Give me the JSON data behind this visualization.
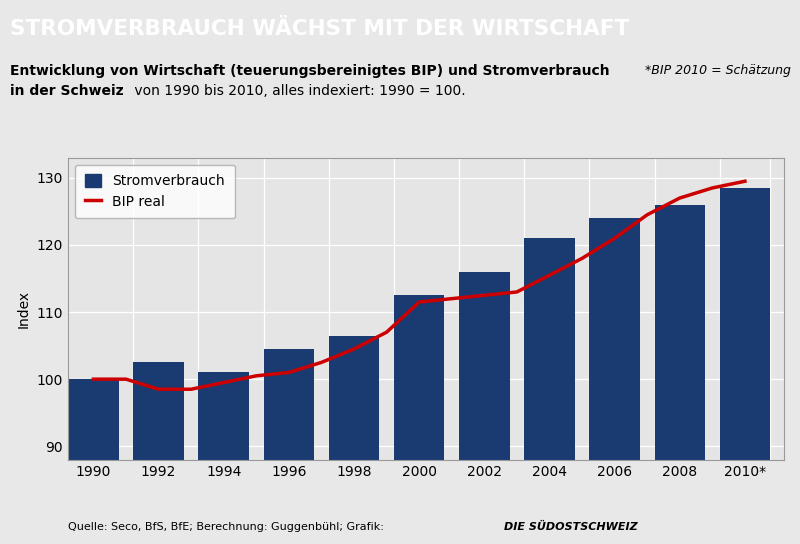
{
  "title": "STROMVERBRAUCH WÄCHST MIT DER WIRTSCHAFT",
  "subtitle_line1_bold": "Entwicklung von Wirtschaft (teuerungsbereinigtes BIP) und Stromverbrauch",
  "subtitle_line2_bold": "in der Schweiz",
  "subtitle_line2_normal": " von 1990 bis 2010, alles indexiert: 1990 = 100.",
  "annotation": "*BIP 2010 = Schätzung",
  "footer_normal": "Quelle: Seco, BfS, BfE; Berechnung: Guggenbühl; Grafik: ",
  "footer_bold": "DIE SÜDOSTSCHWEIZ",
  "ylabel": "Index",
  "title_bg_color": "#1a3a72",
  "title_text_color": "#ffffff",
  "plot_bg_color": "#e5e5e5",
  "outer_bg_color": "#e8e8e8",
  "bar_color": "#1a3a72",
  "line_color": "#cc0000",
  "bar_years": [
    1990,
    1992,
    1994,
    1996,
    1998,
    2000,
    2002,
    2004,
    2006,
    2008,
    2010
  ],
  "bar_values": [
    100,
    102.5,
    101.0,
    104.5,
    106.5,
    112.5,
    116.0,
    121.0,
    124.0,
    126.0,
    128.5
  ],
  "line_years": [
    1990,
    1991,
    1992,
    1993,
    1994,
    1995,
    1996,
    1997,
    1998,
    1999,
    2000,
    2001,
    2002,
    2003,
    2004,
    2005,
    2006,
    2007,
    2008,
    2009,
    2010
  ],
  "line_values": [
    100,
    100.0,
    98.5,
    98.5,
    99.5,
    100.5,
    101.0,
    102.5,
    104.5,
    107.0,
    111.5,
    112.0,
    112.5,
    113.0,
    115.5,
    118.0,
    121.0,
    124.5,
    127.0,
    128.5,
    129.5
  ],
  "ylim": [
    88,
    133
  ],
  "yticks": [
    90,
    100,
    110,
    120,
    130
  ],
  "xtick_labels": [
    "1990",
    "1992",
    "1994",
    "1996",
    "1998",
    "2000",
    "2002",
    "2004",
    "2006",
    "2008",
    "2010*"
  ],
  "legend_stromverbrauch": "Stromverbrauch",
  "legend_bip": "BIP real"
}
